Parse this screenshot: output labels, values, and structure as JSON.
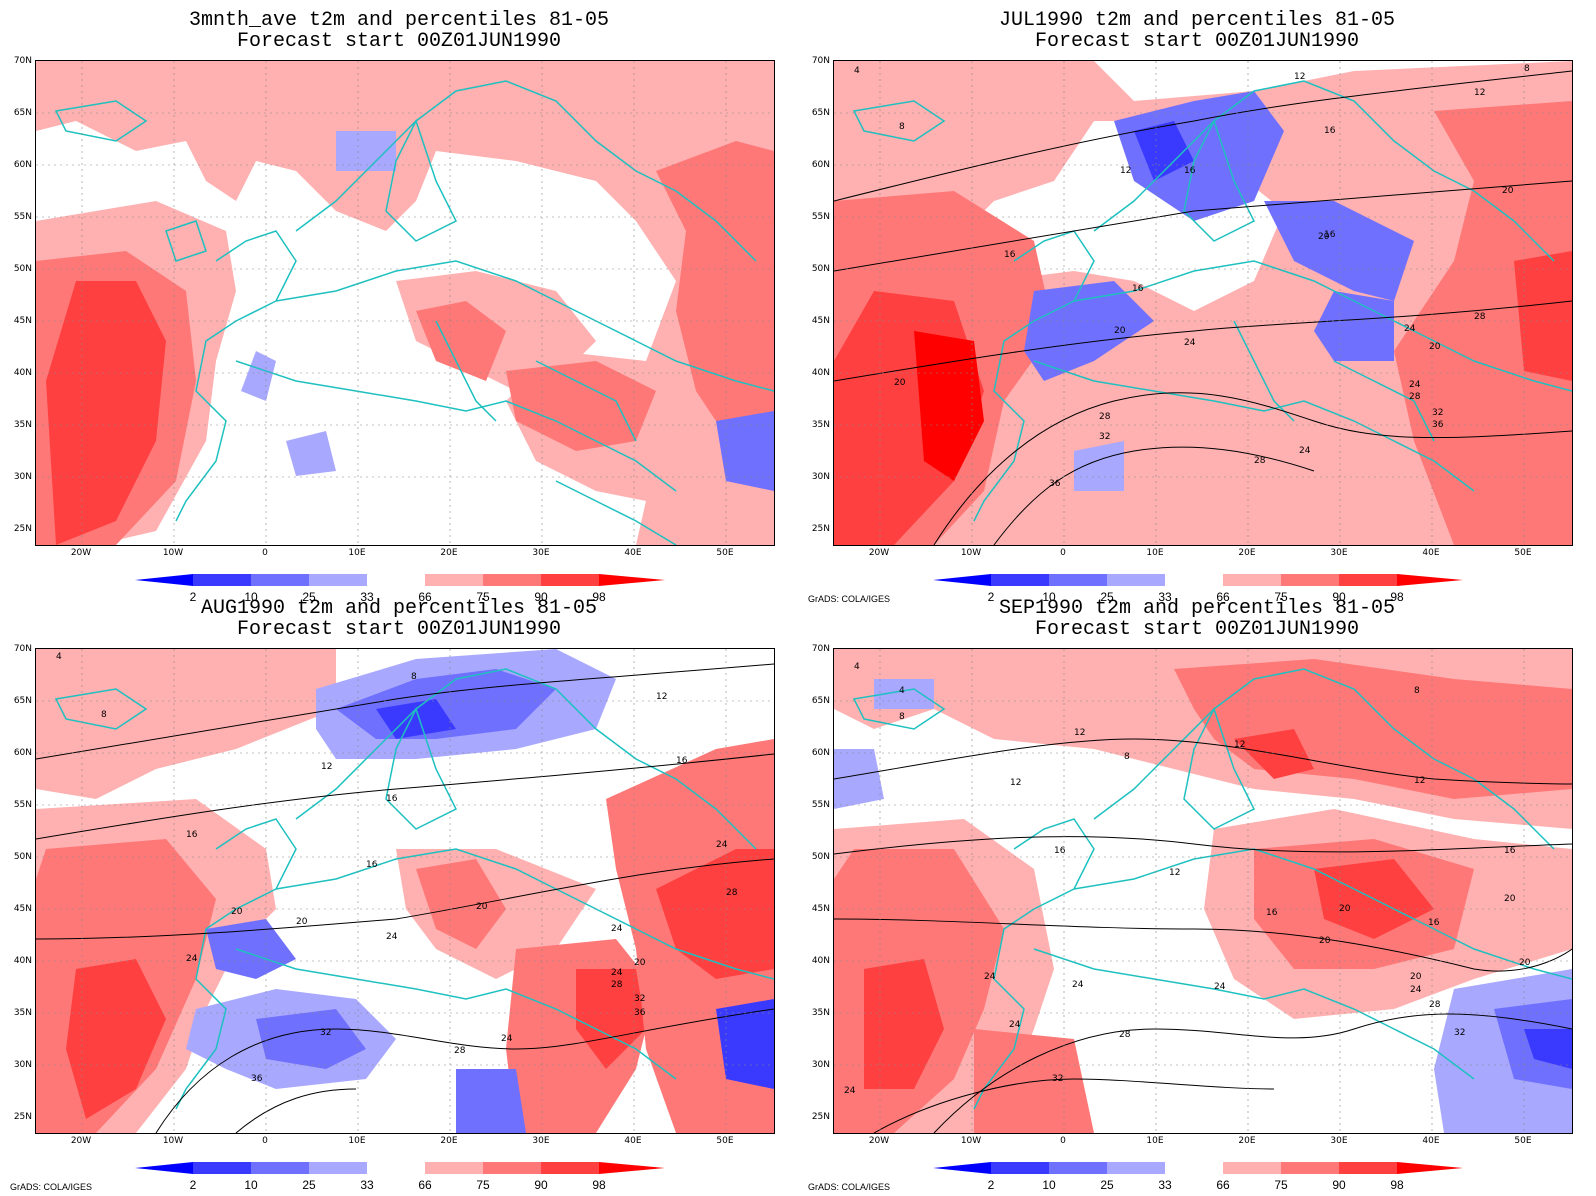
{
  "panels": [
    {
      "title1": "3mnth_ave t2m and percentiles 81-05",
      "title2": "Forecast start 00Z01JUN1990",
      "credit": "",
      "contour_labels": []
    },
    {
      "title1": "JUL1990 t2m and percentiles 81-05",
      "title2": "Forecast start 00Z01JUN1990",
      "credit": "GrADS: COLA/IGES",
      "contour_labels": [
        "4",
        "12",
        "8",
        "16",
        "8",
        "12",
        "16",
        "20",
        "16",
        "20",
        "16",
        "20",
        "24",
        "28",
        "24",
        "20",
        "24",
        "28",
        "32",
        "36",
        "28",
        "32",
        "36",
        "24",
        "28",
        "20",
        "16",
        "12"
      ]
    },
    {
      "title1": "AUG1990 t2m and percentiles 81-05",
      "title2": "Forecast start 00Z01JUN1990",
      "credit": "GrADS: COLA/IGES",
      "contour_labels": [
        "4",
        "8",
        "8",
        "12",
        "12",
        "16",
        "16",
        "16",
        "16",
        "20",
        "20",
        "20",
        "24",
        "24",
        "24",
        "24",
        "20",
        "28",
        "28",
        "32",
        "32",
        "36",
        "24",
        "24",
        "28",
        "36"
      ]
    },
    {
      "title1": "SEP1990 t2m and percentiles 81-05",
      "title2": "Forecast start 00Z01JUN1990",
      "credit": "GrADS: COLA/IGES",
      "contour_labels": [
        "4",
        "4",
        "8",
        "8",
        "8",
        "12",
        "12",
        "12",
        "12",
        "16",
        "16",
        "12",
        "16",
        "20",
        "20",
        "16",
        "20",
        "20",
        "24",
        "24",
        "24",
        "24",
        "28",
        "32",
        "24",
        "28",
        "32",
        "24",
        "20"
      ]
    }
  ],
  "lat_labels": [
    "70N",
    "65N",
    "60N",
    "55N",
    "50N",
    "45N",
    "40N",
    "35N",
    "30N",
    "25N"
  ],
  "lon_labels": [
    "20W",
    "10W",
    "0",
    "10E",
    "20E",
    "30E",
    "40E",
    "50E"
  ],
  "colorbar": {
    "labels": [
      "2",
      "10",
      "25",
      "33",
      "66",
      "75",
      "90",
      "98"
    ],
    "colors": [
      "#0000ff",
      "#3a3aff",
      "#7070ff",
      "#a8a8ff",
      "#ffffff",
      "#ffb0b0",
      "#ff7878",
      "#ff4040",
      "#ff0000"
    ]
  },
  "legend_colors": {
    "land_outline": "#1ec0c0",
    "contour": "#000000"
  }
}
